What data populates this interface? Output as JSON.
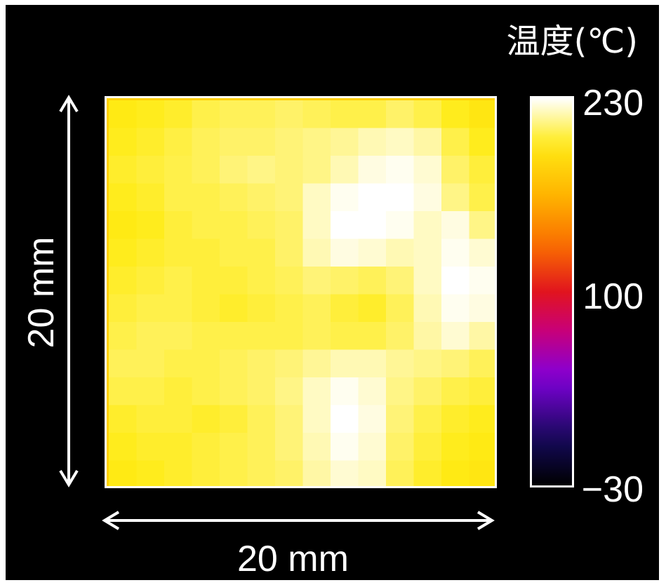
{
  "chart_data": {
    "type": "heatmap",
    "colorbar": {
      "title": "温度(℃)",
      "min": -30,
      "max": 230,
      "tick_labels": [
        "230",
        "100",
        "−30"
      ],
      "tick_values": [
        230,
        100,
        -30
      ],
      "colormap": "black-body (black, purple, red, orange, yellow, white)"
    },
    "xlabel": "20 mm",
    "ylabel": "20 mm",
    "grid_rows": 14,
    "grid_cols": 14,
    "values": [
      [
        198,
        200,
        202,
        206,
        208,
        208,
        210,
        208,
        206,
        206,
        210,
        206,
        200,
        196
      ],
      [
        200,
        202,
        205,
        208,
        210,
        210,
        212,
        214,
        216,
        220,
        222,
        218,
        206,
        200
      ],
      [
        202,
        204,
        206,
        208,
        212,
        214,
        212,
        214,
        220,
        226,
        228,
        224,
        210,
        204
      ],
      [
        200,
        202,
        206,
        206,
        208,
        210,
        212,
        222,
        228,
        230,
        230,
        226,
        214,
        206
      ],
      [
        198,
        200,
        204,
        206,
        206,
        208,
        210,
        222,
        230,
        230,
        228,
        222,
        226,
        214
      ],
      [
        200,
        202,
        204,
        204,
        206,
        206,
        210,
        220,
        226,
        224,
        220,
        222,
        228,
        224
      ],
      [
        202,
        204,
        206,
        204,
        204,
        206,
        208,
        212,
        210,
        208,
        212,
        222,
        230,
        228
      ],
      [
        204,
        206,
        206,
        204,
        202,
        204,
        206,
        208,
        204,
        202,
        208,
        220,
        228,
        226
      ],
      [
        206,
        208,
        208,
        206,
        206,
        206,
        206,
        208,
        206,
        206,
        210,
        218,
        224,
        218
      ],
      [
        208,
        208,
        206,
        206,
        208,
        210,
        212,
        216,
        220,
        220,
        216,
        214,
        212,
        208
      ],
      [
        206,
        206,
        204,
        206,
        208,
        210,
        214,
        222,
        228,
        224,
        214,
        210,
        206,
        204
      ],
      [
        202,
        204,
        204,
        202,
        204,
        208,
        212,
        222,
        230,
        226,
        212,
        206,
        202,
        200
      ],
      [
        200,
        202,
        202,
        204,
        206,
        208,
        212,
        220,
        228,
        224,
        210,
        204,
        200,
        198
      ],
      [
        198,
        200,
        202,
        204,
        206,
        208,
        210,
        218,
        224,
        222,
        208,
        202,
        198,
        196
      ]
    ],
    "colors": {
      "background": "#000000",
      "foreground": "#ffffff"
    }
  }
}
